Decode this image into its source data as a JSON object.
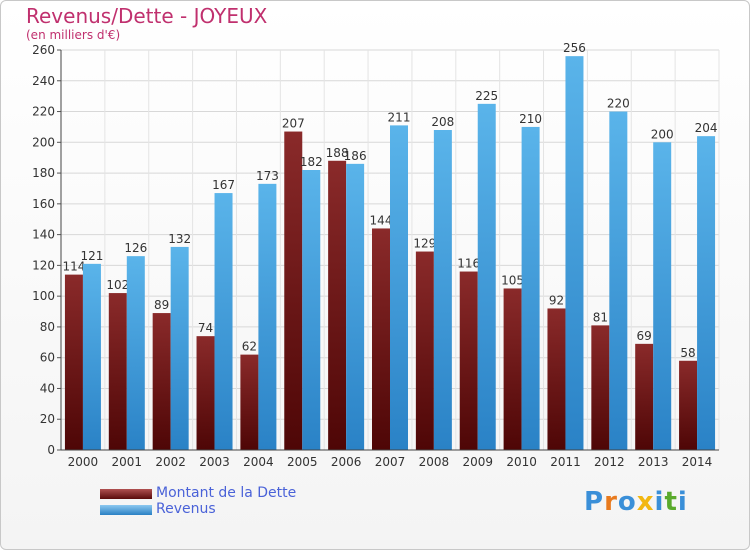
{
  "chart_data": {
    "type": "bar",
    "title": "Revenus/Dette - JOYEUX",
    "subtitle": "(en milliers d'€)",
    "categories": [
      "2000",
      "2001",
      "2002",
      "2003",
      "2004",
      "2005",
      "2006",
      "2007",
      "2008",
      "2009",
      "2010",
      "2011",
      "2012",
      "2013",
      "2014"
    ],
    "series": [
      {
        "name": "Montant de la Dette",
        "color": "#7a1a1a",
        "values": [
          114,
          102,
          89,
          74,
          62,
          207,
          188,
          144,
          129,
          116,
          105,
          92,
          81,
          69,
          58
        ]
      },
      {
        "name": "Revenus",
        "color": "#3fa0e0",
        "values": [
          121,
          126,
          132,
          167,
          173,
          182,
          186,
          211,
          208,
          225,
          210,
          256,
          220,
          200,
          204
        ]
      }
    ],
    "ylim": [
      0,
      260
    ],
    "yticks": [
      0,
      20,
      40,
      60,
      80,
      100,
      120,
      140,
      160,
      180,
      200,
      220,
      240,
      260
    ],
    "grid": true,
    "legend_position": "bottom-left"
  },
  "logo": {
    "letters": [
      "P",
      "r",
      "o",
      "x",
      "i",
      "t",
      "i"
    ],
    "colors": [
      "#3a8fd8",
      "#e87a1e",
      "#3a8fd8",
      "#f2b711",
      "#3a8fd8",
      "#5aaa2c",
      "#3a8fd8"
    ],
    "name": "Proxiti"
  }
}
